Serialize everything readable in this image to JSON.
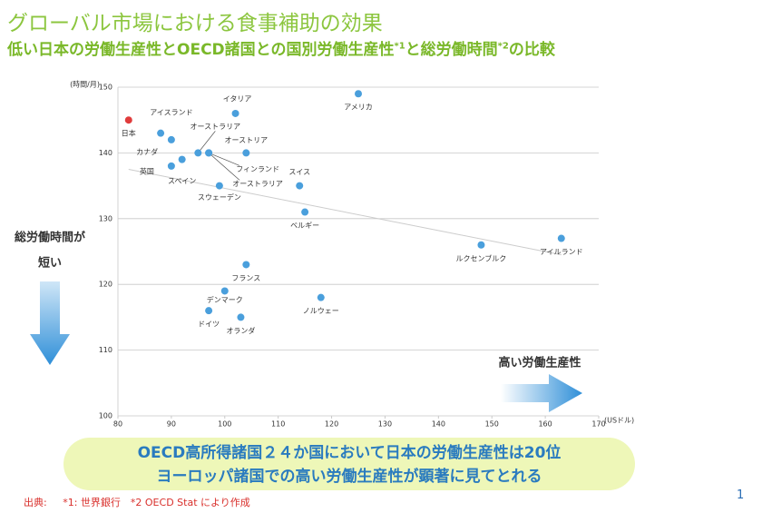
{
  "header": {
    "title": "グローバル市場における食事補助の効果",
    "subtitle": [
      "低い日本の労働生産性とOECD諸国との国別労働生産性",
      "*1",
      "と総労働時間",
      "*2",
      "の比較"
    ]
  },
  "chart_data": {
    "type": "scatter",
    "y_unit": "(時間/月)",
    "x_unit": "(USドル)",
    "labels": [
      "日本",
      "カナダ",
      "アイスランド",
      "イタリア",
      "アメリカ",
      "オーストラリア",
      "フィンランド",
      "オーストラリア",
      "オーストリア",
      "英国",
      "スペイン",
      "スウェーデン",
      "スイス",
      "ベルギー",
      "ルクセンブルク",
      "アイルランド",
      "フランス",
      "デンマーク",
      "ノルウェー",
      "ドイツ",
      "オランダ"
    ],
    "x": [
      82,
      88,
      90,
      102,
      125,
      95,
      97,
      97,
      104,
      90,
      92,
      99,
      114,
      115,
      148,
      163,
      104,
      100,
      118,
      97,
      103
    ],
    "y": [
      145,
      143,
      142,
      146,
      149,
      140,
      140,
      140,
      140,
      138,
      139,
      135,
      135,
      131,
      126,
      127,
      123,
      119,
      118,
      116,
      115
    ],
    "colors": [
      "#e03c3c",
      "#4a9fdc",
      "#4a9fdc",
      "#4a9fdc",
      "#4a9fdc",
      "#4a9fdc",
      "#4a9fdc",
      "#4a9fdc",
      "#4a9fdc",
      "#4a9fdc",
      "#4a9fdc",
      "#4a9fdc",
      "#4a9fdc",
      "#4a9fdc",
      "#4a9fdc",
      "#4a9fdc",
      "#4a9fdc",
      "#4a9fdc",
      "#4a9fdc",
      "#4a9fdc",
      "#4a9fdc"
    ],
    "trendline": {
      "x": [
        82,
        163
      ],
      "y": [
        137.5,
        124.5
      ],
      "color": "#cccccc"
    },
    "xlim": [
      80,
      170
    ],
    "ylim": [
      100,
      150
    ],
    "xticks": [
      80,
      90,
      100,
      110,
      120,
      130,
      140,
      150,
      160,
      170
    ],
    "yticks": [
      100,
      110,
      120,
      130,
      140,
      150
    ],
    "grid": true,
    "annotations": {
      "left": [
        "総労働時間が",
        "短い"
      ],
      "right": "高い労働生産性"
    }
  },
  "callout": [
    "OECD高所得諸国２４か国において日本の労働生産性は20位",
    "ヨーロッパ諸国での高い労働生産性が顕著に見てとれる"
  ],
  "footnote": {
    "source": "出典:",
    "text": "*1: 世界銀行　*2 OECD Stat により作成"
  },
  "page_number": "1"
}
